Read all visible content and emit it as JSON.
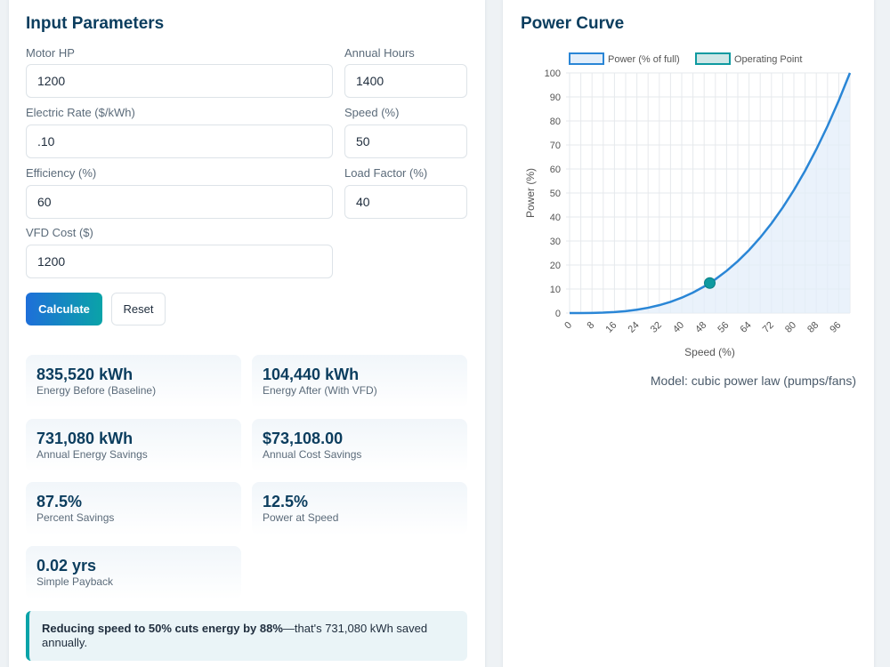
{
  "inputs": {
    "title": "Input Parameters",
    "motor_hp": {
      "label": "Motor HP",
      "value": "1200"
    },
    "annual_hours": {
      "label": "Annual Hours",
      "value": "1400"
    },
    "electric_rate": {
      "label": "Electric Rate ($/kWh)",
      "value": ".10"
    },
    "speed": {
      "label": "Speed (%)",
      "value": "50"
    },
    "efficiency": {
      "label": "Efficiency (%)",
      "value": "60"
    },
    "load_factor": {
      "label": "Load Factor (%)",
      "value": "40"
    },
    "vfd_cost": {
      "label": "VFD Cost ($)",
      "value": "1200"
    },
    "calculate_label": "Calculate",
    "reset_label": "Reset"
  },
  "results": [
    {
      "value": "835,520 kWh",
      "label": "Energy Before (Baseline)"
    },
    {
      "value": "104,440 kWh",
      "label": "Energy After (With VFD)"
    },
    {
      "value": "731,080 kWh",
      "label": "Annual Energy Savings"
    },
    {
      "value": "$73,108.00",
      "label": "Annual Cost Savings"
    },
    {
      "value": "87.5%",
      "label": "Percent Savings"
    },
    {
      "value": "12.5%",
      "label": "Power at Speed"
    },
    {
      "value": "0.02 yrs",
      "label": "Simple Payback"
    }
  ],
  "callout": {
    "bold_text": "Reducing speed to 50% cuts energy by 88%",
    "rest_text": "—that's 731,080 kWh saved annually."
  },
  "chart_panel": {
    "title": "Power Curve",
    "model_note": "Model: cubic power law (pumps/fans)"
  },
  "colors": {
    "accent": "#1e6fd9",
    "teal": "#0aa3a8",
    "line": "#2a86d6",
    "fill": "#e3eefa",
    "point": "#0e9aa0",
    "title": "#0b3d5e"
  },
  "chart_data": {
    "type": "line",
    "xlabel": "Speed (%)",
    "ylabel": "Power (%)",
    "xlim": [
      0,
      100
    ],
    "ylim": [
      0,
      100
    ],
    "x_ticks": [
      0,
      8,
      16,
      24,
      32,
      40,
      48,
      56,
      64,
      72,
      80,
      88,
      96
    ],
    "y_ticks": [
      0,
      10,
      20,
      30,
      40,
      50,
      60,
      70,
      80,
      90,
      100
    ],
    "grid": true,
    "legend_position": "top",
    "series": [
      {
        "name": "Power (% of full)",
        "x": [
          0,
          4,
          8,
          12,
          16,
          20,
          24,
          28,
          32,
          36,
          40,
          44,
          48,
          52,
          56,
          60,
          64,
          68,
          72,
          76,
          80,
          84,
          88,
          92,
          96,
          100
        ],
        "y": [
          0,
          0.01,
          0.05,
          0.17,
          0.41,
          0.8,
          1.38,
          2.2,
          3.28,
          4.67,
          6.4,
          8.52,
          11.06,
          14.06,
          17.56,
          21.6,
          26.21,
          31.44,
          37.32,
          43.9,
          51.2,
          59.27,
          68.15,
          77.87,
          88.47,
          100
        ],
        "filled": true
      },
      {
        "name": "Operating Point",
        "x": [
          50
        ],
        "y": [
          12.5
        ]
      }
    ]
  }
}
